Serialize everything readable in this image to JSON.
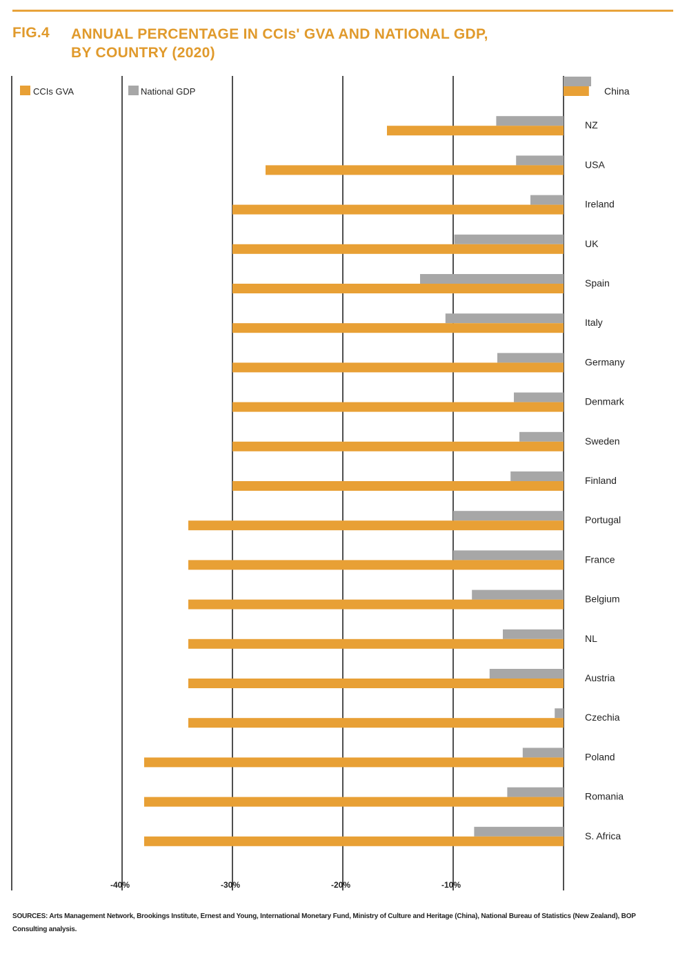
{
  "header": {
    "fig_label": "FIG.4",
    "title_line1": "ANNUAL PERCENTAGE IN CCIs' GVA AND NATIONAL GDP,",
    "title_line2": "BY COUNTRY (2020)"
  },
  "colors": {
    "accent": "#e09a2c",
    "cci_bar": "#e8a035",
    "gdp_bar": "#a7a7a7",
    "grid": "#222222"
  },
  "chart_data": {
    "type": "bar",
    "orientation": "horizontal",
    "categories": [
      "China",
      "NZ",
      "USA",
      "Ireland",
      "UK",
      "Spain",
      "Italy",
      "Germany",
      "Denmark",
      "Sweden",
      "Finland",
      "Portugal",
      "France",
      "Belgium",
      "NL",
      "Austria",
      "Czechia",
      "Poland",
      "Romania",
      "S. Africa"
    ],
    "series": [
      {
        "name": "CCIs GVA",
        "color": "#e8a035",
        "values": [
          2.3,
          -16,
          -27,
          -30,
          -30,
          -30,
          -30,
          -30,
          -30,
          -30,
          -30,
          -34,
          -34,
          -34,
          -34,
          -34,
          -34,
          -38,
          -38,
          -38
        ]
      },
      {
        "name": "National GDP",
        "color": "#a7a7a7",
        "values": [
          2.5,
          -6.1,
          -4.3,
          -3.0,
          -9.9,
          -13.0,
          -10.7,
          -6.0,
          -4.5,
          -4.0,
          -4.8,
          -10.0,
          -10.0,
          -8.3,
          -5.5,
          -6.7,
          -0.8,
          -3.7,
          -5.1,
          -8.1
        ]
      }
    ],
    "xlim": [
      -50,
      0
    ],
    "x_ticks": [
      -40,
      -30,
      -20,
      -10
    ],
    "x_tick_labels": [
      "-40%",
      "-30%",
      "-20%",
      "-10%"
    ],
    "grid": true,
    "legend_position": "top-left"
  },
  "footer": {
    "sources": "SOURCES: Arts Management Network, Brookings Institute, Ernest and Young, International Monetary Fund, Ministry of Culture and Heritage (China), National Bureau of Statistics (New Zealand), BOP Consulting analysis."
  }
}
